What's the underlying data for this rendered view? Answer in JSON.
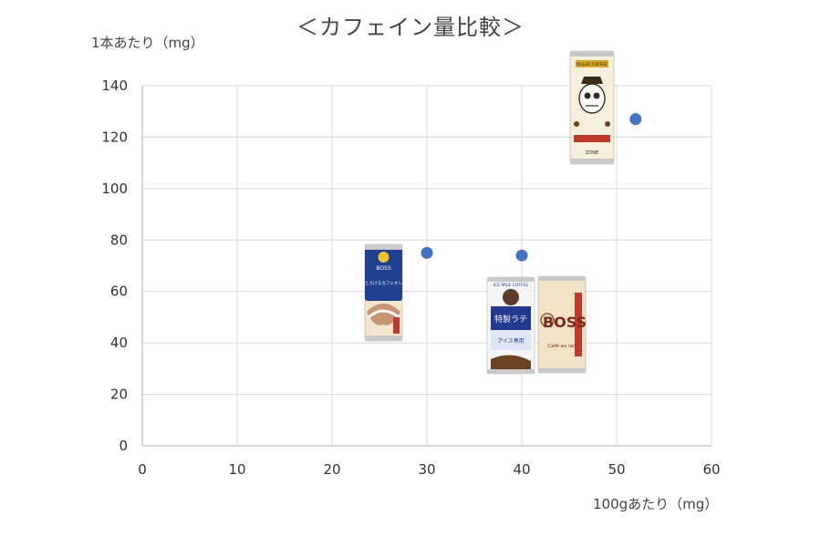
{
  "chart_data": {
    "type": "scatter",
    "title": "＜カフェイン量比較＞",
    "xlabel": "100gあたり（mg）",
    "ylabel": "1本あたり（mg）",
    "xlim": [
      0,
      60
    ],
    "ylim": [
      0,
      140
    ],
    "xticks": [
      0,
      10,
      20,
      30,
      40,
      50,
      60
    ],
    "yticks": [
      0,
      20,
      40,
      60,
      80,
      100,
      120,
      140
    ],
    "grid": true,
    "points": [
      {
        "x": 30,
        "y": 75,
        "product": "BOSS とろけるカフェオレ",
        "product_text": [
          "BOSS",
          "とろけるカフェオレ"
        ]
      },
      {
        "x": 40,
        "y": 74,
        "product": "特製ラテ / BOSS カフェオレ",
        "product_text": [
          "ICE MILK COFFEE",
          "特製ラテ",
          "アイス専用",
          "BOSS",
          "Café au lait"
        ]
      },
      {
        "x": 52,
        "y": 127,
        "product": "KILLER COFFEE",
        "product_text": [
          "KILLER COFFEE",
          "ZONE"
        ]
      }
    ],
    "colors": {
      "marker": "#4472C4",
      "grid": "#D9D9D9",
      "axis": "#BFBFBF"
    }
  }
}
